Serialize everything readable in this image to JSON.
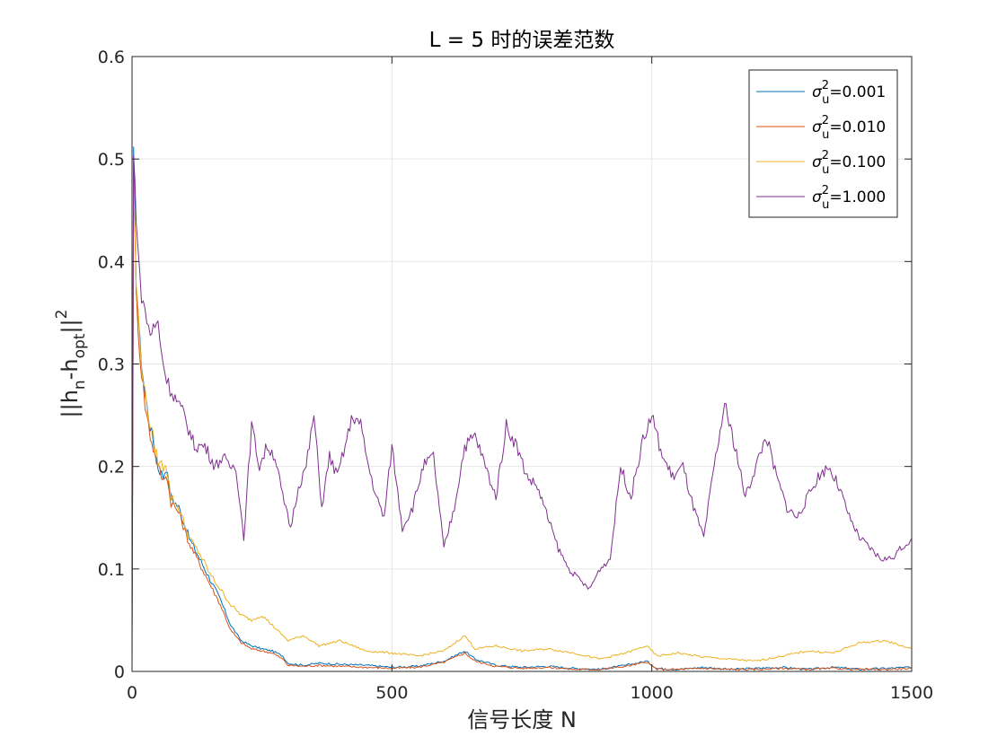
{
  "chart_data": {
    "type": "line",
    "title": "L = 5 时的误差范数",
    "xlabel": "信号长度 N",
    "ylabel": "||h_n-h_opt||^2",
    "xlim": [
      0,
      1500
    ],
    "ylim": [
      0,
      0.6
    ],
    "xticks": [
      0,
      500,
      1000,
      1500
    ],
    "yticks": [
      0,
      0.1,
      0.2,
      0.3,
      0.4,
      0.5,
      0.6
    ],
    "xtick_labels": [
      "0",
      "500",
      "1000",
      "1500"
    ],
    "ytick_labels": [
      "0",
      "0.1",
      "0.2",
      "0.3",
      "0.4",
      "0.5",
      "0.6"
    ],
    "grid": true,
    "legend_position": "top-right",
    "series": [
      {
        "name": "σ_u^2=0.001",
        "legend": {
          "sym": "σ",
          "sup": "2",
          "sub": "u",
          "value": "=0.001"
        },
        "color": "#0072BD",
        "x": [
          0,
          3,
          8,
          15,
          25,
          35,
          50,
          60,
          65,
          75,
          90,
          110,
          130,
          150,
          170,
          190,
          210,
          230,
          250,
          270,
          290,
          300,
          330,
          360,
          400,
          450,
          500,
          550,
          600,
          640,
          660,
          700,
          750,
          800,
          850,
          900,
          950,
          990,
          1010,
          1050,
          1100,
          1150,
          1200,
          1250,
          1300,
          1350,
          1400,
          1450,
          1500
        ],
        "y": [
          0.04,
          0.5,
          0.38,
          0.32,
          0.27,
          0.24,
          0.2,
          0.19,
          0.2,
          0.17,
          0.16,
          0.13,
          0.11,
          0.09,
          0.07,
          0.045,
          0.03,
          0.025,
          0.022,
          0.02,
          0.015,
          0.008,
          0.006,
          0.008,
          0.007,
          0.006,
          0.004,
          0.005,
          0.01,
          0.02,
          0.012,
          0.006,
          0.004,
          0.005,
          0.003,
          0.002,
          0.006,
          0.01,
          0.003,
          0.002,
          0.004,
          0.002,
          0.003,
          0.004,
          0.002,
          0.004,
          0.002,
          0.003,
          0.004
        ]
      },
      {
        "name": "σ_u^2=0.010",
        "legend": {
          "sym": "σ",
          "sup": "2",
          "sub": "u",
          "value": "=0.010"
        },
        "color": "#D95319",
        "x": [
          0,
          3,
          8,
          15,
          25,
          35,
          50,
          60,
          65,
          75,
          90,
          110,
          130,
          150,
          170,
          190,
          210,
          230,
          250,
          270,
          290,
          300,
          330,
          360,
          400,
          450,
          500,
          550,
          600,
          640,
          660,
          700,
          750,
          800,
          850,
          900,
          950,
          990,
          1010,
          1050,
          1100,
          1150,
          1200,
          1250,
          1300,
          1350,
          1400,
          1450,
          1500
        ],
        "y": [
          0.04,
          0.48,
          0.37,
          0.31,
          0.26,
          0.23,
          0.2,
          0.185,
          0.195,
          0.165,
          0.155,
          0.125,
          0.105,
          0.085,
          0.065,
          0.04,
          0.028,
          0.022,
          0.02,
          0.018,
          0.012,
          0.006,
          0.005,
          0.006,
          0.005,
          0.004,
          0.003,
          0.004,
          0.009,
          0.018,
          0.01,
          0.005,
          0.003,
          0.004,
          0.002,
          0.002,
          0.005,
          0.009,
          0.002,
          0.002,
          0.003,
          0.002,
          0.002,
          0.003,
          0.002,
          0.003,
          0.002,
          0.002,
          0.003
        ]
      },
      {
        "name": "σ_u^2=0.100",
        "legend": {
          "sym": "σ",
          "sup": "2",
          "sub": "u",
          "value": "=0.100"
        },
        "color": "#EDB120",
        "x": [
          0,
          3,
          8,
          15,
          25,
          35,
          50,
          60,
          65,
          75,
          90,
          110,
          130,
          150,
          170,
          190,
          210,
          230,
          250,
          270,
          290,
          300,
          330,
          360,
          400,
          450,
          500,
          550,
          600,
          640,
          660,
          700,
          750,
          800,
          850,
          900,
          950,
          990,
          1010,
          1050,
          1100,
          1150,
          1200,
          1250,
          1300,
          1350,
          1400,
          1450,
          1500
        ],
        "y": [
          0.04,
          0.48,
          0.38,
          0.32,
          0.27,
          0.24,
          0.205,
          0.2,
          0.205,
          0.17,
          0.16,
          0.13,
          0.115,
          0.095,
          0.08,
          0.065,
          0.055,
          0.05,
          0.055,
          0.045,
          0.035,
          0.03,
          0.035,
          0.025,
          0.03,
          0.02,
          0.018,
          0.015,
          0.02,
          0.035,
          0.022,
          0.025,
          0.02,
          0.022,
          0.018,
          0.012,
          0.018,
          0.025,
          0.015,
          0.018,
          0.014,
          0.012,
          0.01,
          0.015,
          0.02,
          0.018,
          0.028,
          0.03,
          0.022
        ]
      },
      {
        "name": "σ_u^2=1.000",
        "legend": {
          "sym": "σ",
          "sup": "2",
          "sub": "u",
          "value": "=1.000"
        },
        "color": "#7E2F8E",
        "x": [
          0,
          3,
          8,
          15,
          25,
          35,
          50,
          60,
          70,
          80,
          100,
          120,
          140,
          160,
          175,
          185,
          200,
          215,
          230,
          245,
          260,
          275,
          290,
          305,
          320,
          335,
          350,
          365,
          380,
          395,
          410,
          425,
          440,
          455,
          470,
          485,
          500,
          520,
          540,
          560,
          580,
          600,
          620,
          640,
          660,
          680,
          700,
          720,
          740,
          760,
          780,
          800,
          820,
          840,
          860,
          880,
          900,
          920,
          940,
          960,
          980,
          1000,
          1020,
          1040,
          1060,
          1080,
          1100,
          1120,
          1140,
          1160,
          1180,
          1200,
          1220,
          1240,
          1260,
          1280,
          1300,
          1320,
          1340,
          1360,
          1380,
          1400,
          1420,
          1440,
          1460,
          1480,
          1500
        ],
        "y": [
          0.0,
          0.5,
          0.45,
          0.38,
          0.35,
          0.33,
          0.34,
          0.3,
          0.28,
          0.27,
          0.25,
          0.22,
          0.22,
          0.2,
          0.21,
          0.2,
          0.2,
          0.13,
          0.24,
          0.2,
          0.22,
          0.21,
          0.17,
          0.14,
          0.18,
          0.2,
          0.25,
          0.16,
          0.21,
          0.19,
          0.22,
          0.25,
          0.24,
          0.2,
          0.17,
          0.15,
          0.22,
          0.14,
          0.16,
          0.2,
          0.21,
          0.12,
          0.16,
          0.22,
          0.23,
          0.2,
          0.17,
          0.24,
          0.22,
          0.19,
          0.18,
          0.15,
          0.12,
          0.1,
          0.09,
          0.08,
          0.1,
          0.11,
          0.2,
          0.17,
          0.22,
          0.25,
          0.21,
          0.19,
          0.2,
          0.16,
          0.13,
          0.2,
          0.26,
          0.22,
          0.17,
          0.2,
          0.23,
          0.19,
          0.16,
          0.15,
          0.17,
          0.19,
          0.2,
          0.18,
          0.15,
          0.13,
          0.12,
          0.11,
          0.11,
          0.12,
          0.13
        ]
      }
    ]
  }
}
